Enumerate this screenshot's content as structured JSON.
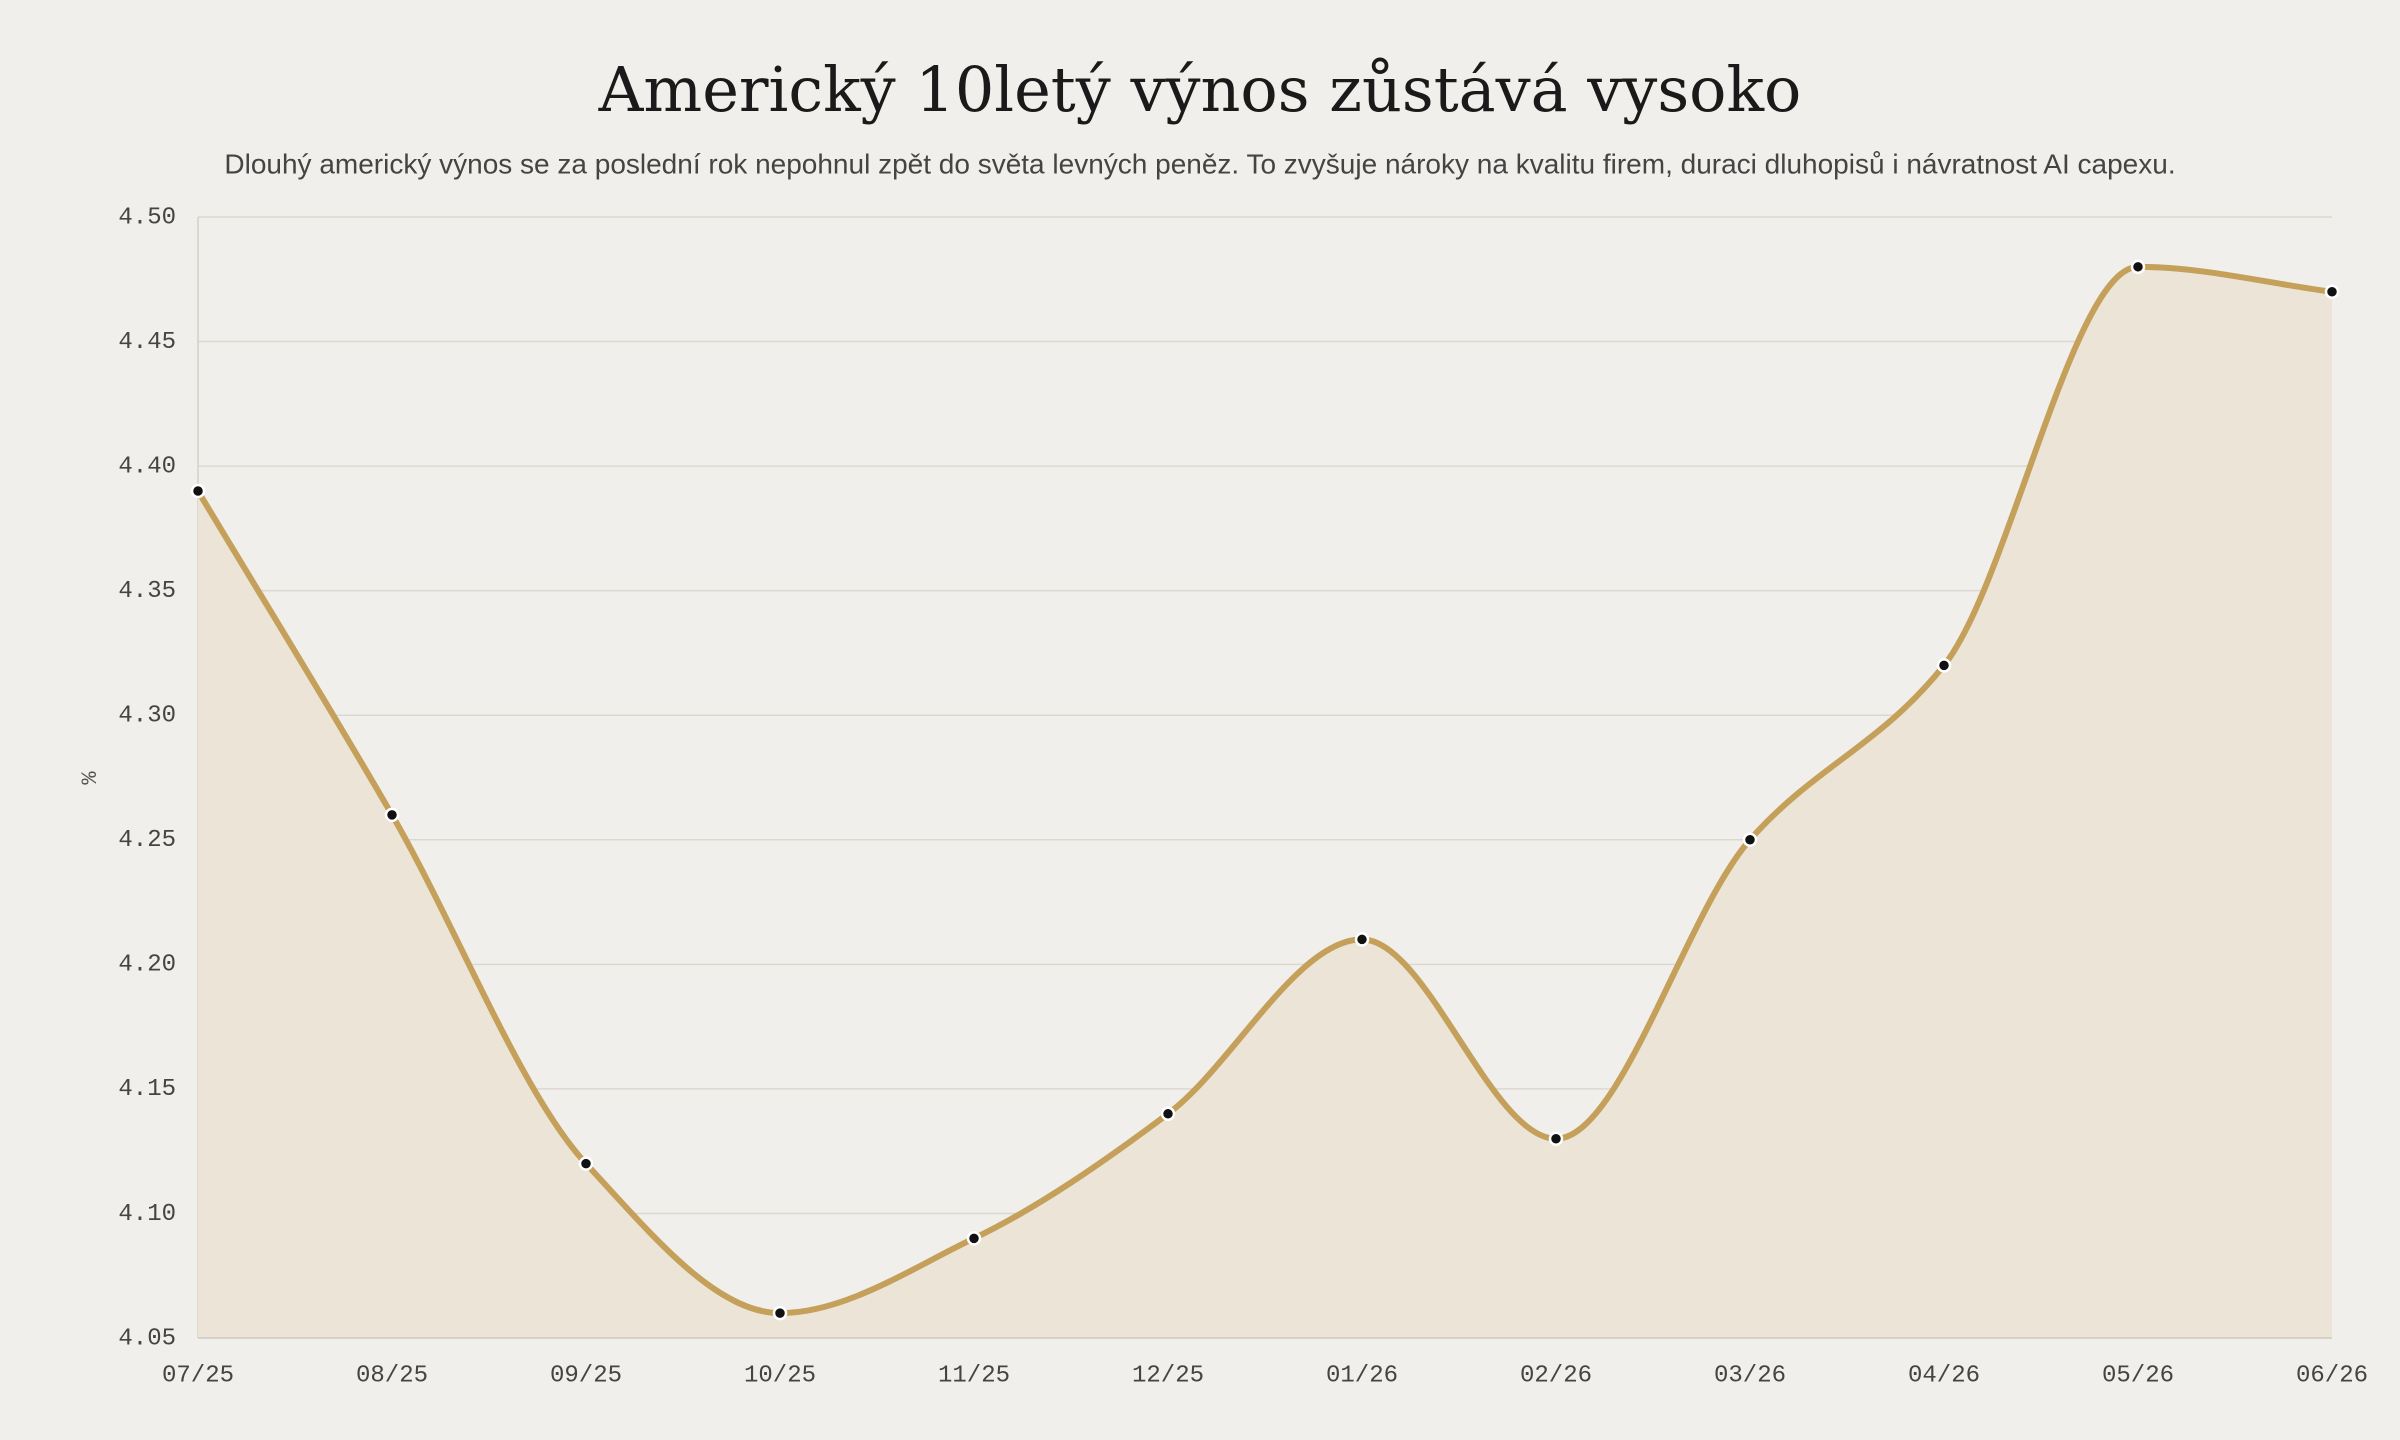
{
  "chart_data": {
    "type": "line",
    "title": "Americký 10letý výnos zůstává vysoko",
    "subtitle": "Dlouhý americký výnos se za poslední rok nepohnul zpět do světa levných peněz. To zvyšuje nároky na kvalitu firem, duraci dluhopisů i návratnost AI capexu.",
    "y_label": "%",
    "categories": [
      "07/25",
      "08/25",
      "09/25",
      "10/25",
      "11/25",
      "12/25",
      "01/26",
      "02/26",
      "03/26",
      "04/26",
      "05/26",
      "06/26"
    ],
    "values": [
      4.39,
      4.26,
      4.12,
      4.06,
      4.09,
      4.14,
      4.21,
      4.13,
      4.25,
      4.32,
      4.48,
      4.47
    ],
    "color": "#c4a05a",
    "area_color": "#ece4d7",
    "point_color": "#111111",
    "ylim": [
      4.05,
      4.5
    ],
    "yticks": [
      4.05,
      {
        "value": 4.1,
        "label": "4.10"
      },
      4.15,
      {
        "value": 4.2,
        "label": "4.20"
      },
      4.25,
      {
        "value": 4.3,
        "label": "4.30"
      },
      4.35,
      {
        "value": 4.4,
        "label": "4.40"
      },
      4.45,
      {
        "value": 4.5,
        "label": "4.50"
      }
    ],
    "grid": true
  }
}
